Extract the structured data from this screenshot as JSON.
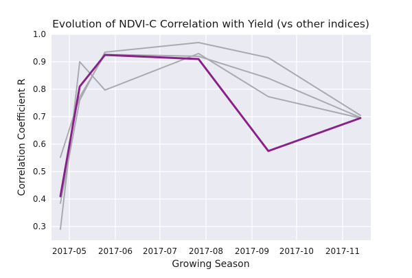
{
  "chart_data": {
    "type": "line",
    "title": "Evolution of NDVI-C Correlation with Yield (vs other indices)",
    "xlabel": "Growing Season",
    "ylabel": "Correlation Coefficient R",
    "x": [
      "2017-04-25",
      "2017-05-08",
      "2017-05-25",
      "2017-07-27",
      "2017-09-12",
      "2017-11-13"
    ],
    "x_tick_labels": [
      "2017-05",
      "2017-06",
      "2017-07",
      "2017-08",
      "2017-09",
      "2017-10",
      "2017-11"
    ],
    "x_ticks": [
      "2017-05-01",
      "2017-06-01",
      "2017-07-01",
      "2017-08-01",
      "2017-09-01",
      "2017-10-01",
      "2017-11-01"
    ],
    "xlim": [
      "2017-04-19",
      "2017-11-20"
    ],
    "ylim": [
      0.25,
      1.0
    ],
    "y_ticks": [
      0.3,
      0.4,
      0.5,
      0.6,
      0.7,
      0.8,
      0.9,
      1.0
    ],
    "grid": true,
    "background_color": "#eaeaf2",
    "grid_color": "#ffffff",
    "series": [
      {
        "name": "",
        "color": "#a9a9b0",
        "highlight": false,
        "values": [
          0.29,
          0.9,
          0.797,
          0.93,
          0.773,
          0.695
        ]
      },
      {
        "name": "",
        "color": "#a9a9b0",
        "highlight": false,
        "values": [
          0.385,
          0.76,
          0.935,
          0.97,
          0.915,
          0.705
        ]
      },
      {
        "name": "",
        "color": "#a9a9b0",
        "highlight": false,
        "values": [
          0.552,
          0.772,
          0.927,
          0.92,
          0.84,
          0.697
        ]
      },
      {
        "name": "",
        "color": "#882288",
        "highlight": true,
        "values": [
          0.41,
          0.81,
          0.925,
          0.91,
          0.575,
          0.695
        ]
      }
    ]
  }
}
